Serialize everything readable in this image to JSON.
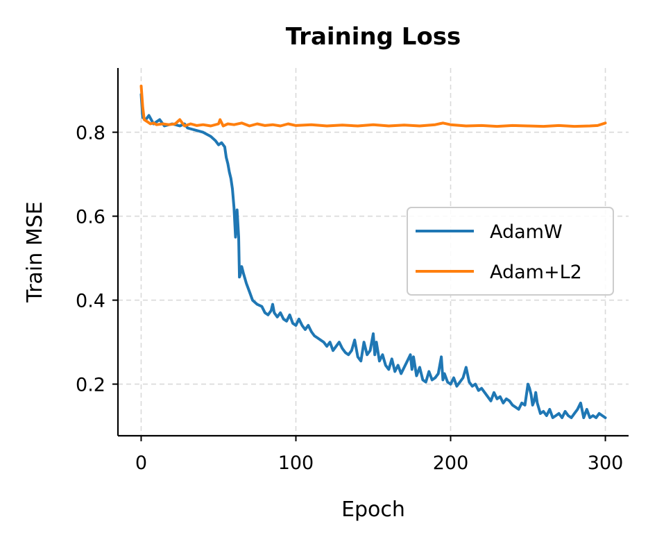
{
  "chart_data": {
    "type": "line",
    "title": "Training Loss",
    "xlabel": "Epoch",
    "ylabel": "Train MSE",
    "xlim": [
      -15,
      315
    ],
    "ylim": [
      0.077,
      0.953
    ],
    "xticks": [
      0,
      100,
      200,
      300
    ],
    "yticks": [
      0.2,
      0.4,
      0.6,
      0.8
    ],
    "xtick_labels": [
      "0",
      "100",
      "200",
      "300"
    ],
    "ytick_labels": [
      "0.2",
      "0.4",
      "0.6",
      "0.8"
    ],
    "grid": true,
    "legend_position": "center-right",
    "series": [
      {
        "name": "AdamW",
        "color": "#1f77b4",
        "points": [
          [
            0,
            0.89
          ],
          [
            1,
            0.835
          ],
          [
            3,
            0.83
          ],
          [
            5,
            0.84
          ],
          [
            8,
            0.82
          ],
          [
            10,
            0.825
          ],
          [
            12,
            0.83
          ],
          [
            15,
            0.815
          ],
          [
            20,
            0.82
          ],
          [
            25,
            0.815
          ],
          [
            28,
            0.82
          ],
          [
            30,
            0.81
          ],
          [
            35,
            0.805
          ],
          [
            40,
            0.8
          ],
          [
            45,
            0.79
          ],
          [
            48,
            0.78
          ],
          [
            50,
            0.77
          ],
          [
            52,
            0.775
          ],
          [
            54,
            0.765
          ],
          [
            55,
            0.74
          ],
          [
            56,
            0.725
          ],
          [
            57,
            0.705
          ],
          [
            58,
            0.69
          ],
          [
            59,
            0.665
          ],
          [
            60,
            0.62
          ],
          [
            61,
            0.55
          ],
          [
            62,
            0.615
          ],
          [
            63,
            0.55
          ],
          [
            63.5,
            0.455
          ],
          [
            64,
            0.46
          ],
          [
            65,
            0.48
          ],
          [
            66,
            0.465
          ],
          [
            68,
            0.44
          ],
          [
            70,
            0.42
          ],
          [
            72,
            0.4
          ],
          [
            75,
            0.39
          ],
          [
            78,
            0.385
          ],
          [
            80,
            0.37
          ],
          [
            82,
            0.365
          ],
          [
            84,
            0.375
          ],
          [
            85,
            0.39
          ],
          [
            86,
            0.37
          ],
          [
            88,
            0.36
          ],
          [
            90,
            0.37
          ],
          [
            92,
            0.355
          ],
          [
            94,
            0.35
          ],
          [
            96,
            0.365
          ],
          [
            98,
            0.345
          ],
          [
            100,
            0.34
          ],
          [
            102,
            0.355
          ],
          [
            104,
            0.34
          ],
          [
            106,
            0.33
          ],
          [
            108,
            0.34
          ],
          [
            110,
            0.325
          ],
          [
            112,
            0.315
          ],
          [
            114,
            0.31
          ],
          [
            116,
            0.305
          ],
          [
            118,
            0.3
          ],
          [
            120,
            0.29
          ],
          [
            122,
            0.3
          ],
          [
            124,
            0.28
          ],
          [
            126,
            0.29
          ],
          [
            128,
            0.3
          ],
          [
            130,
            0.285
          ],
          [
            132,
            0.275
          ],
          [
            134,
            0.27
          ],
          [
            136,
            0.28
          ],
          [
            138,
            0.305
          ],
          [
            140,
            0.265
          ],
          [
            142,
            0.255
          ],
          [
            144,
            0.3
          ],
          [
            146,
            0.27
          ],
          [
            148,
            0.28
          ],
          [
            150,
            0.32
          ],
          [
            151,
            0.27
          ],
          [
            152,
            0.3
          ],
          [
            154,
            0.255
          ],
          [
            156,
            0.27
          ],
          [
            158,
            0.245
          ],
          [
            160,
            0.235
          ],
          [
            162,
            0.26
          ],
          [
            164,
            0.23
          ],
          [
            166,
            0.245
          ],
          [
            168,
            0.225
          ],
          [
            170,
            0.24
          ],
          [
            172,
            0.255
          ],
          [
            174,
            0.27
          ],
          [
            175,
            0.235
          ],
          [
            176,
            0.265
          ],
          [
            178,
            0.22
          ],
          [
            180,
            0.24
          ],
          [
            182,
            0.21
          ],
          [
            184,
            0.205
          ],
          [
            186,
            0.23
          ],
          [
            188,
            0.21
          ],
          [
            190,
            0.215
          ],
          [
            192,
            0.225
          ],
          [
            193,
            0.245
          ],
          [
            194,
            0.265
          ],
          [
            195,
            0.21
          ],
          [
            196,
            0.225
          ],
          [
            198,
            0.205
          ],
          [
            200,
            0.2
          ],
          [
            202,
            0.215
          ],
          [
            204,
            0.195
          ],
          [
            206,
            0.205
          ],
          [
            208,
            0.215
          ],
          [
            210,
            0.24
          ],
          [
            212,
            0.205
          ],
          [
            214,
            0.195
          ],
          [
            216,
            0.2
          ],
          [
            218,
            0.185
          ],
          [
            220,
            0.19
          ],
          [
            222,
            0.18
          ],
          [
            224,
            0.17
          ],
          [
            226,
            0.16
          ],
          [
            228,
            0.18
          ],
          [
            230,
            0.165
          ],
          [
            232,
            0.17
          ],
          [
            234,
            0.155
          ],
          [
            236,
            0.165
          ],
          [
            238,
            0.16
          ],
          [
            240,
            0.15
          ],
          [
            242,
            0.145
          ],
          [
            244,
            0.14
          ],
          [
            246,
            0.155
          ],
          [
            248,
            0.15
          ],
          [
            250,
            0.2
          ],
          [
            251,
            0.19
          ],
          [
            252,
            0.175
          ],
          [
            253,
            0.15
          ],
          [
            254,
            0.16
          ],
          [
            255,
            0.18
          ],
          [
            256,
            0.155
          ],
          [
            258,
            0.13
          ],
          [
            260,
            0.135
          ],
          [
            262,
            0.125
          ],
          [
            264,
            0.14
          ],
          [
            266,
            0.12
          ],
          [
            268,
            0.125
          ],
          [
            270,
            0.13
          ],
          [
            272,
            0.12
          ],
          [
            274,
            0.135
          ],
          [
            276,
            0.125
          ],
          [
            278,
            0.12
          ],
          [
            280,
            0.13
          ],
          [
            282,
            0.14
          ],
          [
            284,
            0.155
          ],
          [
            286,
            0.12
          ],
          [
            288,
            0.14
          ],
          [
            290,
            0.12
          ],
          [
            292,
            0.125
          ],
          [
            294,
            0.12
          ],
          [
            296,
            0.13
          ],
          [
            298,
            0.125
          ],
          [
            300,
            0.12
          ]
        ]
      },
      {
        "name": "Adam+L2",
        "color": "#ff7f0e",
        "points": [
          [
            0,
            0.91
          ],
          [
            1,
            0.86
          ],
          [
            2,
            0.83
          ],
          [
            4,
            0.825
          ],
          [
            6,
            0.82
          ],
          [
            8,
            0.822
          ],
          [
            10,
            0.818
          ],
          [
            14,
            0.82
          ],
          [
            18,
            0.818
          ],
          [
            22,
            0.82
          ],
          [
            25,
            0.83
          ],
          [
            28,
            0.815
          ],
          [
            32,
            0.82
          ],
          [
            36,
            0.816
          ],
          [
            40,
            0.818
          ],
          [
            45,
            0.815
          ],
          [
            50,
            0.82
          ],
          [
            51,
            0.83
          ],
          [
            53,
            0.815
          ],
          [
            56,
            0.82
          ],
          [
            60,
            0.818
          ],
          [
            65,
            0.822
          ],
          [
            70,
            0.815
          ],
          [
            75,
            0.82
          ],
          [
            80,
            0.816
          ],
          [
            85,
            0.818
          ],
          [
            90,
            0.815
          ],
          [
            95,
            0.82
          ],
          [
            100,
            0.816
          ],
          [
            110,
            0.818
          ],
          [
            120,
            0.815
          ],
          [
            130,
            0.817
          ],
          [
            140,
            0.815
          ],
          [
            150,
            0.818
          ],
          [
            160,
            0.815
          ],
          [
            170,
            0.817
          ],
          [
            180,
            0.815
          ],
          [
            190,
            0.818
          ],
          [
            195,
            0.822
          ],
          [
            200,
            0.818
          ],
          [
            210,
            0.815
          ],
          [
            220,
            0.816
          ],
          [
            230,
            0.814
          ],
          [
            240,
            0.816
          ],
          [
            250,
            0.815
          ],
          [
            260,
            0.814
          ],
          [
            270,
            0.816
          ],
          [
            280,
            0.814
          ],
          [
            290,
            0.815
          ],
          [
            295,
            0.816
          ],
          [
            300,
            0.822
          ]
        ]
      }
    ]
  }
}
